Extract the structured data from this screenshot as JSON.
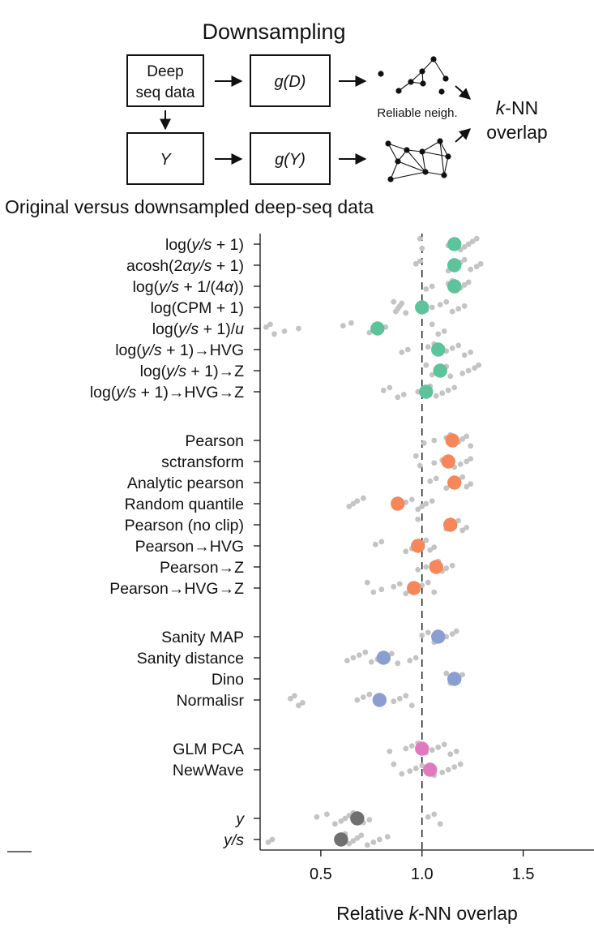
{
  "diagram": {
    "title": "Downsampling",
    "deep_seq_label_line1": "Deep",
    "deep_seq_label_line2": "seq data",
    "gD_label": "g(D)",
    "y_label": "Y",
    "gY_label": "g(Y)",
    "reliable_label": "Reliable neigh.",
    "knn_line1_italic": "k",
    "knn_line1_rest": "-NN",
    "knn_line2": "overlap"
  },
  "subtitle": "Original versus downsampled deep-seq data",
  "colors": {
    "green": "#5cc39a",
    "orange": "#f5875a",
    "blue": "#8a9fd0",
    "pink": "#e07ac0",
    "gray": "#707070",
    "points": "#c4c4c4"
  },
  "chart_data": {
    "type": "scatter",
    "xlabel_prefix": "Relative ",
    "xlabel_italic": "k",
    "xlabel_suffix": "-NN overlap",
    "xlim": [
      0.2,
      1.85
    ],
    "xticks": [
      0.5,
      1.0,
      1.5
    ],
    "xtick_labels": [
      "0.5",
      "1.0",
      "1.5"
    ],
    "reference_line": 1.0,
    "groups": [
      {
        "color": "green",
        "methods": [
          {
            "label": [
              [
                "log(",
                ""
              ],
              [
                "y/s",
                "i"
              ],
              [
                " + 1)",
                ""
              ]
            ],
            "mean": 1.16,
            "points": [
              0.99,
              1.0,
              1.13,
              1.15,
              1.17,
              1.19,
              1.21,
              1.23,
              1.25,
              1.27
            ]
          },
          {
            "label": [
              [
                "acosh(2",
                ""
              ],
              [
                "αy/s",
                "i"
              ],
              [
                " + 1)",
                ""
              ]
            ],
            "mean": 1.16,
            "points": [
              0.97,
              0.99,
              1.13,
              1.15,
              1.17,
              1.19,
              1.21,
              1.24,
              1.27,
              1.29
            ]
          },
          {
            "label": [
              [
                "log(",
                ""
              ],
              [
                "y/s",
                "i"
              ],
              [
                " + 1/(4",
                ""
              ],
              [
                "α",
                "i"
              ],
              [
                "))",
                ""
              ]
            ],
            "mean": 1.16,
            "points": [
              1.02,
              1.05,
              1.13,
              1.15,
              1.17,
              1.19,
              1.21,
              1.23
            ]
          },
          {
            "label": [
              [
                "log(CPM + 1)",
                ""
              ]
            ],
            "mean": 1.0,
            "points": [
              0.86,
              0.87,
              0.88,
              0.89,
              0.9,
              0.92,
              1.02,
              1.05,
              1.09,
              1.12,
              1.15,
              1.18,
              1.21
            ]
          },
          {
            "label": [
              [
                "log(",
                ""
              ],
              [
                "y/s",
                "i"
              ],
              [
                " + 1)/",
                ""
              ],
              [
                "u",
                "i"
              ]
            ],
            "mean": 0.78,
            "points": [
              0.23,
              0.25,
              0.27,
              0.32,
              0.39,
              0.61,
              0.65,
              0.74,
              0.8,
              0.82,
              1.05,
              1.08,
              1.11
            ]
          },
          {
            "label": [
              [
                "log(",
                ""
              ],
              [
                "y/s",
                "i"
              ],
              [
                " + 1)→HVG",
                ""
              ]
            ],
            "mean": 1.08,
            "points": [
              0.9,
              0.93,
              1.03,
              1.06,
              1.09,
              1.12,
              1.15,
              1.18,
              1.21,
              1.24
            ]
          },
          {
            "label": [
              [
                "log(",
                ""
              ],
              [
                "y/s",
                "i"
              ],
              [
                " + 1)→Z",
                ""
              ]
            ],
            "mean": 1.09,
            "points": [
              1.02,
              1.05,
              1.07,
              1.1,
              1.12,
              1.14,
              1.2,
              1.23,
              1.26,
              1.28
            ]
          },
          {
            "label": [
              [
                "log(",
                ""
              ],
              [
                "y/s",
                "i"
              ],
              [
                " + 1)→HVG→Z",
                ""
              ]
            ],
            "mean": 1.02,
            "points": [
              0.81,
              0.84,
              0.88,
              0.91,
              0.98,
              1.01,
              1.04,
              1.07,
              1.1,
              1.13,
              1.16
            ]
          }
        ]
      },
      {
        "color": "orange",
        "methods": [
          {
            "label": [
              [
                "Pearson",
                ""
              ]
            ],
            "mean": 1.15,
            "points": [
              1.01,
              1.06,
              1.12,
              1.14,
              1.16,
              1.18,
              1.2,
              1.22,
              1.24
            ]
          },
          {
            "label": [
              [
                "sctransform",
                ""
              ]
            ],
            "mean": 1.13,
            "points": [
              0.97,
              0.99,
              1.06,
              1.1,
              1.13,
              1.16,
              1.19,
              1.22,
              1.24
            ]
          },
          {
            "label": [
              [
                "Analytic pearson",
                ""
              ]
            ],
            "mean": 1.16,
            "points": [
              1.04,
              1.07,
              1.12,
              1.14,
              1.16,
              1.18,
              1.2,
              1.22,
              1.24
            ]
          },
          {
            "label": [
              [
                "Random quantile",
                ""
              ]
            ],
            "mean": 0.88,
            "points": [
              0.64,
              0.66,
              0.68,
              0.71,
              0.87,
              0.9,
              0.92,
              0.95,
              0.98,
              1.0,
              1.02,
              1.05
            ]
          },
          {
            "label": [
              [
                "Pearson (no clip)",
                ""
              ]
            ],
            "mean": 1.14,
            "points": [
              0.98,
              1.12,
              1.14,
              1.16,
              1.18,
              1.2,
              1.22
            ]
          },
          {
            "label": [
              [
                "Pearson→HVG",
                ""
              ]
            ],
            "mean": 0.98,
            "points": [
              0.77,
              0.8,
              0.92,
              0.95,
              0.98,
              1.0,
              1.02,
              1.04,
              1.06
            ]
          },
          {
            "label": [
              [
                "Pearson→Z",
                ""
              ]
            ],
            "mean": 1.07,
            "points": [
              0.98,
              1.02,
              1.05,
              1.08,
              1.1,
              1.12,
              1.15
            ]
          },
          {
            "label": [
              [
                "Pearson→HVG→Z",
                ""
              ]
            ],
            "mean": 0.96,
            "points": [
              0.73,
              0.76,
              0.8,
              0.86,
              0.89,
              0.92,
              0.94,
              0.97,
              1.0,
              1.03,
              1.06
            ]
          }
        ]
      },
      {
        "color": "blue",
        "methods": [
          {
            "label": [
              [
                "Sanity MAP",
                ""
              ]
            ],
            "mean": 1.08,
            "points": [
              1.0,
              1.03,
              1.06,
              1.09,
              1.12,
              1.15,
              1.17
            ]
          },
          {
            "label": [
              [
                "Sanity distance",
                ""
              ]
            ],
            "mean": 0.81,
            "points": [
              0.63,
              0.66,
              0.69,
              0.72,
              0.75,
              0.78,
              0.81,
              0.85,
              0.88,
              0.94,
              0.97
            ]
          },
          {
            "label": [
              [
                "Dino",
                ""
              ]
            ],
            "mean": 1.16,
            "points": [
              1.12,
              1.14,
              1.16,
              1.18,
              1.2
            ]
          },
          {
            "label": [
              [
                "Normalisr",
                ""
              ]
            ],
            "mean": 0.79,
            "points": [
              0.35,
              0.37,
              0.39,
              0.41,
              0.68,
              0.71,
              0.74,
              0.79,
              0.86,
              0.89,
              0.92,
              0.95
            ]
          }
        ]
      },
      {
        "color": "pink",
        "methods": [
          {
            "label": [
              [
                "GLM PCA",
                ""
              ]
            ],
            "mean": 1.0,
            "points": [
              0.84,
              0.92,
              0.95,
              0.98,
              1.02,
              1.05,
              1.08,
              1.11,
              1.14,
              1.17
            ]
          },
          {
            "label": [
              [
                "NewWave",
                ""
              ]
            ],
            "mean": 1.04,
            "points": [
              0.86,
              0.9,
              0.94,
              0.97,
              1.0,
              1.06,
              1.1,
              1.13,
              1.16,
              1.19
            ]
          }
        ]
      },
      {
        "color": "gray",
        "methods": [
          {
            "label": [
              [
                "y",
                "i"
              ]
            ],
            "mean": 0.68,
            "points": [
              0.48,
              0.53,
              0.57,
              0.6,
              0.62,
              0.64,
              0.66,
              0.71,
              0.74,
              1.03,
              1.06,
              1.09
            ]
          },
          {
            "label": [
              [
                "y/s",
                "i"
              ]
            ],
            "mean": 0.6,
            "points": [
              0.24,
              0.26,
              0.6,
              0.62,
              0.64,
              0.66,
              0.68,
              0.7,
              0.73,
              0.76,
              0.79,
              0.83
            ]
          }
        ]
      }
    ]
  }
}
